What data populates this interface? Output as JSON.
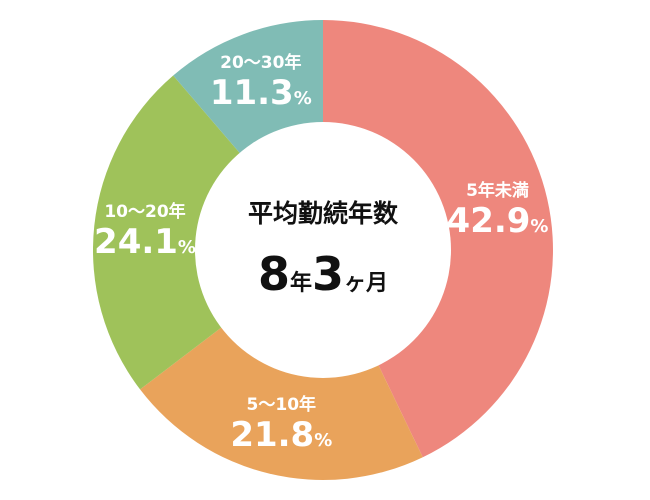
{
  "chart_data": {
    "type": "pie",
    "title": "",
    "center": {
      "title": "平均勤続年数",
      "value_num1": "8",
      "value_unit1": "年",
      "value_num2": "3",
      "value_unit2": "ヶ月"
    },
    "slices": [
      {
        "label": "5年未満",
        "value": 42.9,
        "value_text": "42.9",
        "color": "#ee877d"
      },
      {
        "label": "5～10年",
        "value": 21.8,
        "value_text": "21.8",
        "color": "#e9a35b"
      },
      {
        "label": "10～20年",
        "value": 24.1,
        "value_text": "24.1",
        "color": "#9fc25a"
      },
      {
        "label": "20～30年",
        "value": 11.3,
        "value_text": "11.3",
        "color": "#80bcb5"
      }
    ],
    "unit": "%",
    "start_angle_deg": 0,
    "direction": "clockwise",
    "donut": true
  }
}
